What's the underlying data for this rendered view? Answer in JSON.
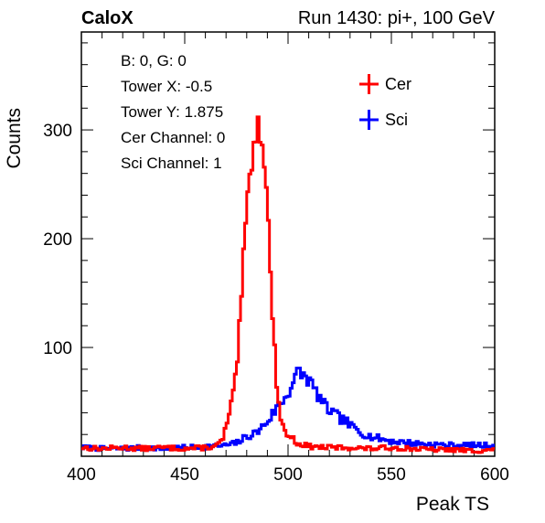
{
  "header": {
    "left": "CaloX",
    "right": "Run 1430: pi+, 100 GeV"
  },
  "info_box": {
    "lines": [
      "B: 0, G: 0",
      "Tower X: -0.5",
      "Tower Y: 1.875",
      "Cer Channel: 0",
      "Sci Channel: 1"
    ]
  },
  "colors": {
    "cer": "#ff0000",
    "sci": "#0000ff",
    "axis": "#000000"
  },
  "chart_data": {
    "type": "line",
    "title": "",
    "xlabel": "Peak TS",
    "ylabel": "Counts",
    "xlim": [
      400,
      600
    ],
    "ylim": [
      0,
      390
    ],
    "xticks": [
      400,
      450,
      500,
      550,
      600
    ],
    "yticks": [
      100,
      200,
      300
    ],
    "grid": false,
    "legend": {
      "placement": "top-right",
      "entries": [
        "Cer",
        "Sci"
      ]
    },
    "bin_width": 1,
    "series": [
      {
        "name": "Cer",
        "color": "#ff0000",
        "points": [
          [
            400,
            8
          ],
          [
            410,
            7
          ],
          [
            420,
            8
          ],
          [
            430,
            7
          ],
          [
            440,
            8
          ],
          [
            450,
            7
          ],
          [
            460,
            8
          ],
          [
            465,
            9
          ],
          [
            468,
            14
          ],
          [
            470,
            26
          ],
          [
            472,
            42
          ],
          [
            474,
            60
          ],
          [
            476,
            100
          ],
          [
            478,
            165
          ],
          [
            480,
            225
          ],
          [
            482,
            270
          ],
          [
            483,
            280
          ],
          [
            484,
            292
          ],
          [
            485,
            308
          ],
          [
            486,
            296
          ],
          [
            487,
            305
          ],
          [
            488,
            285
          ],
          [
            489,
            270
          ],
          [
            490,
            230
          ],
          [
            491,
            190
          ],
          [
            492,
            150
          ],
          [
            493,
            110
          ],
          [
            494,
            80
          ],
          [
            495,
            60
          ],
          [
            496,
            42
          ],
          [
            497,
            30
          ],
          [
            498,
            24
          ],
          [
            500,
            20
          ],
          [
            502,
            16
          ],
          [
            505,
            12
          ],
          [
            510,
            9
          ],
          [
            520,
            8
          ],
          [
            530,
            8
          ],
          [
            540,
            7
          ],
          [
            550,
            8
          ],
          [
            560,
            7
          ],
          [
            570,
            6
          ],
          [
            580,
            6
          ],
          [
            590,
            5
          ],
          [
            600,
            6
          ]
        ]
      },
      {
        "name": "Sci",
        "color": "#0000ff",
        "points": [
          [
            400,
            8
          ],
          [
            410,
            7
          ],
          [
            420,
            7
          ],
          [
            430,
            8
          ],
          [
            440,
            7
          ],
          [
            450,
            8
          ],
          [
            460,
            9
          ],
          [
            470,
            10
          ],
          [
            475,
            12
          ],
          [
            480,
            18
          ],
          [
            485,
            22
          ],
          [
            490,
            32
          ],
          [
            493,
            40
          ],
          [
            495,
            46
          ],
          [
            497,
            50
          ],
          [
            499,
            55
          ],
          [
            501,
            62
          ],
          [
            503,
            70
          ],
          [
            505,
            78
          ],
          [
            507,
            75
          ],
          [
            509,
            72
          ],
          [
            511,
            68
          ],
          [
            513,
            60
          ],
          [
            515,
            55
          ],
          [
            517,
            48
          ],
          [
            520,
            42
          ],
          [
            523,
            38
          ],
          [
            525,
            35
          ],
          [
            528,
            32
          ],
          [
            530,
            28
          ],
          [
            533,
            25
          ],
          [
            535,
            22
          ],
          [
            538,
            20
          ],
          [
            540,
            18
          ],
          [
            545,
            16
          ],
          [
            550,
            14
          ],
          [
            555,
            13
          ],
          [
            560,
            12
          ],
          [
            570,
            11
          ],
          [
            580,
            10
          ],
          [
            590,
            10
          ],
          [
            600,
            10
          ]
        ]
      }
    ]
  }
}
